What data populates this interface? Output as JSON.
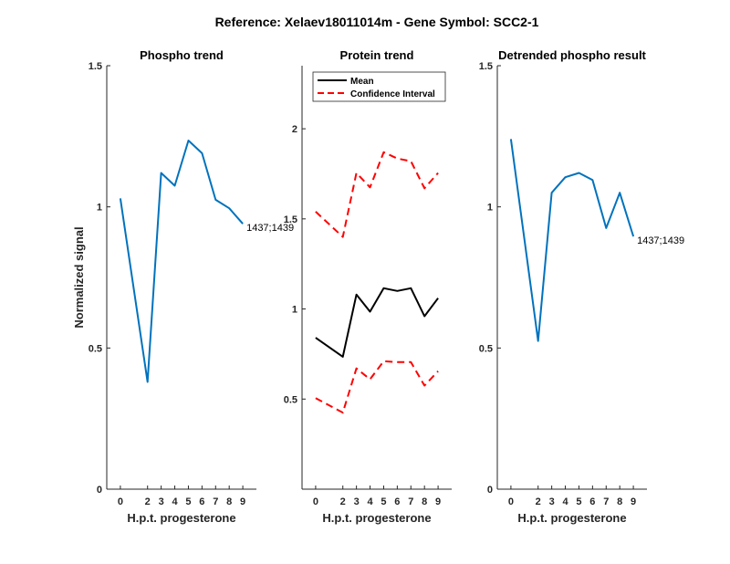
{
  "figure_title": "Reference:  Xelaev18011014m - Gene Symbol:  SCC2-1",
  "colors": {
    "blue": "#0072BD",
    "black": "#000000",
    "red": "#FF0000",
    "axis": "#262626"
  },
  "chart_data": [
    {
      "type": "line",
      "title": "Phospho trend",
      "xlabel": "H.p.t. progesterone",
      "ylabel": "Normalized signal",
      "xlim": [
        -1,
        10
      ],
      "ylim": [
        0,
        1.5
      ],
      "xticks": [
        0,
        2,
        3,
        4,
        5,
        6,
        7,
        8,
        9
      ],
      "yticks": [
        0,
        0.5,
        1,
        1.5
      ],
      "ytick_labels": [
        "0",
        "0.5",
        "1",
        "1.5"
      ],
      "x": [
        0,
        2,
        3,
        4,
        5,
        6,
        7,
        8,
        9
      ],
      "series": [
        {
          "values": [
            1.03,
            0.38,
            1.12,
            1.075,
            1.235,
            1.19,
            1.025,
            0.995,
            0.94
          ],
          "color": "blue",
          "style": "solid"
        }
      ],
      "annotation": "1437;1439"
    },
    {
      "type": "line",
      "title": "Protein trend",
      "xlabel": "H.p.t. progesterone",
      "ylabel": "",
      "xlim": [
        -1,
        10
      ],
      "ylim": [
        0.0,
        2.35
      ],
      "xticks": [
        0,
        2,
        3,
        4,
        5,
        6,
        7,
        8,
        9
      ],
      "yticks": [
        0.5,
        1,
        1.5,
        2
      ],
      "ytick_labels": [
        "0.5",
        "1",
        "1.5",
        "2"
      ],
      "x": [
        0,
        2,
        3,
        4,
        5,
        6,
        7,
        8,
        9
      ],
      "legend": {
        "placement": "top-left",
        "entries": [
          "Mean",
          "Confidence Interval"
        ]
      },
      "series": [
        {
          "name": "Mean",
          "values": [
            0.84,
            0.735,
            1.08,
            0.985,
            1.115,
            1.1,
            1.115,
            0.96,
            1.06
          ],
          "color": "black",
          "style": "solid"
        },
        {
          "name": "Confidence Interval",
          "values": [
            1.54,
            1.4,
            1.755,
            1.675,
            1.87,
            1.835,
            1.82,
            1.67,
            1.755
          ],
          "color": "red",
          "style": "dashed"
        },
        {
          "values": [
            0.505,
            0.425,
            0.67,
            0.61,
            0.71,
            0.705,
            0.705,
            0.575,
            0.655
          ],
          "color": "red",
          "style": "dashed"
        }
      ]
    },
    {
      "type": "line",
      "title": "Detrended phospho result",
      "xlabel": "H.p.t. progesterone",
      "ylabel": "",
      "xlim": [
        -1,
        10
      ],
      "ylim": [
        0,
        1.5
      ],
      "xticks": [
        0,
        2,
        3,
        4,
        5,
        6,
        7,
        8,
        9
      ],
      "yticks": [
        0,
        0.5,
        1,
        1.5
      ],
      "ytick_labels": [
        "0",
        "0.5",
        "1",
        "1.5"
      ],
      "x": [
        0,
        2,
        3,
        4,
        5,
        6,
        7,
        8,
        9
      ],
      "series": [
        {
          "values": [
            1.24,
            0.525,
            1.05,
            1.105,
            1.12,
            1.095,
            0.925,
            1.05,
            0.895
          ],
          "color": "blue",
          "style": "solid"
        }
      ],
      "annotation": "1437;1439"
    }
  ]
}
